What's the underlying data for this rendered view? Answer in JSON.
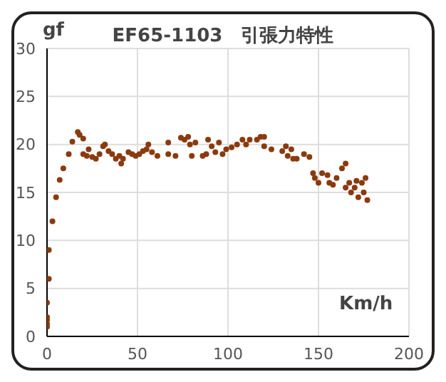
{
  "chart_data": {
    "type": "scatter",
    "title": "EF65-1103　引張力特性",
    "xlabel": "Km/h",
    "ylabel": "gf",
    "x": [
      0,
      0,
      0,
      0,
      0,
      1,
      1,
      3,
      5,
      7,
      9,
      12,
      14,
      17,
      18,
      20,
      20,
      22,
      23,
      25,
      27,
      29,
      31,
      32,
      34,
      36,
      38,
      40,
      41,
      42,
      45,
      47,
      49,
      51,
      53,
      55,
      56,
      58,
      61,
      67,
      67,
      71,
      74,
      76,
      78,
      79,
      80,
      82,
      86,
      88,
      89,
      91,
      93,
      95,
      97,
      99,
      102,
      105,
      108,
      110,
      112,
      116,
      118,
      120,
      120,
      124,
      130,
      132,
      133,
      135,
      136,
      138,
      142,
      145,
      147,
      148,
      150,
      152,
      155,
      156,
      158,
      160,
      163,
      165,
      165,
      167,
      168,
      170,
      171,
      172,
      174,
      175,
      176,
      177
    ],
    "series": [
      {
        "color": "#8b3a0f",
        "values": [
          1,
          1.3,
          1.7,
          2,
          3.5,
          6,
          9,
          12,
          14.5,
          16.3,
          17.5,
          19,
          20.3,
          21.3,
          21,
          20.6,
          19,
          18.8,
          19.5,
          18.7,
          18.5,
          19,
          19.8,
          20,
          19.3,
          19,
          18.5,
          18.8,
          18,
          18.5,
          19.2,
          19,
          18.8,
          19,
          19.3,
          19.5,
          20,
          19.2,
          18.8,
          20.2,
          19,
          18.8,
          20.7,
          20.5,
          20.8,
          20,
          18.8,
          20.2,
          18.8,
          19,
          20.5,
          19.8,
          19.2,
          20.2,
          19,
          19.5,
          19.7,
          20,
          20.5,
          20,
          20.5,
          20.5,
          20.8,
          20.8,
          19.8,
          19.5,
          19.3,
          19.8,
          18.8,
          19.5,
          18.5,
          18.5,
          19,
          18.7,
          17,
          16.5,
          16,
          17,
          16.8,
          16,
          15.8,
          16.5,
          17.5,
          18,
          15.5,
          16,
          15,
          15.5,
          16.2,
          14.5,
          16,
          15,
          16.5,
          14.2
        ]
      }
    ],
    "xlim": [
      0,
      200
    ],
    "xticks": [
      0,
      50,
      100,
      150,
      200
    ],
    "ylim": [
      0,
      30
    ],
    "yticks": [
      0,
      5,
      10,
      15,
      20,
      25,
      30
    ],
    "grid": true,
    "marker": "circle"
  }
}
